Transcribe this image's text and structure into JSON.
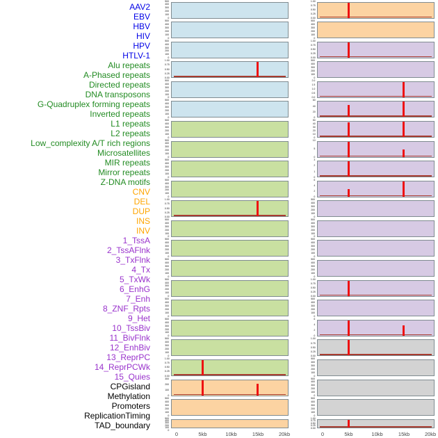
{
  "colors": {
    "label_groups": {
      "virus": "#0000e6",
      "repeat": "#228b22",
      "sv": "#ffa500",
      "chromatin": "#9932cc",
      "other": "#000000"
    },
    "panel_fills": {
      "virus": "#cde4ee",
      "repeat": "#c9e0a1",
      "sv": "#fcd3a2",
      "chromatin": "#d7cae4",
      "other": "#d3d3d3"
    },
    "spike": "#ee1111",
    "baseline": "#a83c30",
    "panel_border": "#7f8b90",
    "axis_text": "#464646"
  },
  "chart_data": {
    "type": "bar",
    "layout": "small-multiples",
    "columns": 2,
    "rows_per_column": 22,
    "x_axis": {
      "tick_labels": [
        "0",
        "5kb",
        "10kb",
        "15kb",
        "20kb"
      ],
      "range_kb": [
        0,
        20
      ]
    },
    "ytick_presets": {
      "count": [
        "500",
        "400",
        "300",
        "200",
        "100",
        "0"
      ],
      "norm": [
        "1.00",
        "0.75",
        "0.50",
        "0.25",
        "0.00"
      ]
    },
    "tracks": [
      {
        "label": "AAV2",
        "group": "virus",
        "yticks": "count",
        "ymax": 500,
        "spikes": [],
        "baseline": false
      },
      {
        "label": "EBV",
        "group": "virus",
        "yticks": "count",
        "ymax": 500,
        "spikes": [],
        "baseline": false
      },
      {
        "label": "HBV",
        "group": "virus",
        "yticks": "count",
        "ymax": 500,
        "spikes": [],
        "baseline": false
      },
      {
        "label": "HIV",
        "group": "virus",
        "yticks": "norm",
        "ymax": 1,
        "spikes": [
          {
            "kb": 15,
            "value": 1.0
          }
        ],
        "baseline": true
      },
      {
        "label": "HPV",
        "group": "virus",
        "yticks": "count",
        "ymax": 500,
        "spikes": [],
        "baseline": false
      },
      {
        "label": "HTLV-1",
        "group": "virus",
        "yticks": "count",
        "ymax": 500,
        "spikes": [],
        "baseline": false
      },
      {
        "label": "Alu repeats",
        "group": "repeat",
        "yticks": "count",
        "ymax": 500,
        "spikes": [],
        "baseline": false
      },
      {
        "label": "A-Phased repeats",
        "group": "repeat",
        "yticks": "count",
        "ymax": 500,
        "spikes": [],
        "baseline": false
      },
      {
        "label": "Directed repeats",
        "group": "repeat",
        "yticks": "count",
        "ymax": 500,
        "spikes": [],
        "baseline": false
      },
      {
        "label": "DNA transposons",
        "group": "repeat",
        "yticks": "count",
        "ymax": 500,
        "spikes": [],
        "baseline": false
      },
      {
        "label": "G-Quadruplex forming repeats",
        "group": "repeat",
        "yticks": "norm",
        "ymax": 1,
        "spikes": [
          {
            "kb": 15,
            "value": 1.0
          }
        ],
        "baseline": true
      },
      {
        "label": "Inverted repeats",
        "group": "repeat",
        "yticks": "count",
        "ymax": 500,
        "spikes": [],
        "baseline": false
      },
      {
        "label": "L1 repeats",
        "group": "repeat",
        "yticks": "count",
        "ymax": 500,
        "spikes": [],
        "baseline": false
      },
      {
        "label": "L2 repeats",
        "group": "repeat",
        "yticks": "count",
        "ymax": 500,
        "spikes": [],
        "baseline": false
      },
      {
        "label": "Low_complexity A/T rich regions",
        "group": "repeat",
        "yticks": "count",
        "ymax": 500,
        "spikes": [],
        "baseline": false
      },
      {
        "label": "Microsatellites",
        "group": "repeat",
        "yticks": "count",
        "ymax": 500,
        "spikes": [],
        "baseline": false
      },
      {
        "label": "MIR repeats",
        "group": "repeat",
        "yticks": "count",
        "ymax": 500,
        "spikes": [],
        "baseline": false
      },
      {
        "label": "Mirror repeats",
        "group": "repeat",
        "yticks": "count",
        "ymax": 500,
        "spikes": [],
        "baseline": false
      },
      {
        "label": "Z-DNA motifs",
        "group": "repeat",
        "yticks": "norm",
        "ymax": 1,
        "spikes": [
          {
            "kb": 5,
            "value": 1.0
          }
        ],
        "baseline": true
      },
      {
        "label": "CNV",
        "group": "sv",
        "yticks": [
          "300",
          "200",
          "100",
          "0"
        ],
        "ymax": 300,
        "spikes": [
          {
            "kb": 5,
            "value": 300
          },
          {
            "kb": 15,
            "value": 230
          }
        ],
        "baseline": true
      },
      {
        "label": "DEL",
        "group": "sv",
        "yticks": "count",
        "ymax": 500,
        "spikes": [],
        "baseline": false
      },
      {
        "label": "DUP",
        "group": "sv",
        "yticks": "count",
        "ymax": 500,
        "spikes": [],
        "baseline": false
      },
      {
        "label": "INS",
        "group": "sv",
        "yticks": "norm",
        "ymax": 1,
        "spikes": [
          {
            "kb": 5,
            "value": 1.0
          }
        ],
        "baseline": true
      },
      {
        "label": "INV",
        "group": "sv",
        "yticks": "count",
        "ymax": 500,
        "spikes": [],
        "baseline": false
      },
      {
        "label": "1_TssA",
        "group": "chromatin",
        "yticks": "norm",
        "ymax": 1,
        "spikes": [
          {
            "kb": 5,
            "value": 1.0
          }
        ],
        "baseline": true
      },
      {
        "label": "2_TssAFlnk",
        "group": "chromatin",
        "yticks": "count",
        "ymax": 500,
        "spikes": [],
        "baseline": false
      },
      {
        "label": "3_TxFlnk",
        "group": "chromatin",
        "yticks": [
          "2.0",
          "1.5",
          "1.0",
          "0.5",
          "0.0"
        ],
        "ymax": 2,
        "spikes": [
          {
            "kb": 15,
            "value": 2.0
          }
        ],
        "baseline": true
      },
      {
        "label": "4_Tx",
        "group": "chromatin",
        "yticks": [
          "60",
          "40",
          "20",
          "0"
        ],
        "ymax": 60,
        "spikes": [
          {
            "kb": 5,
            "value": 48
          },
          {
            "kb": 15,
            "value": 60
          }
        ],
        "baseline": true
      },
      {
        "label": "5_TxWk",
        "group": "chromatin",
        "yticks": [
          "50",
          "40",
          "30",
          "20",
          "10",
          "0"
        ],
        "ymax": 50,
        "spikes": [
          {
            "kb": 5,
            "value": 47
          },
          {
            "kb": 15,
            "value": 50
          }
        ],
        "baseline": true
      },
      {
        "label": "6_EnhG",
        "group": "chromatin",
        "yticks": [
          "10",
          "5",
          "0"
        ],
        "ymax": 10,
        "spikes": [
          {
            "kb": 5,
            "value": 10
          },
          {
            "kb": 15,
            "value": 5
          }
        ],
        "baseline": true
      },
      {
        "label": "7_Enh",
        "group": "chromatin",
        "yticks": [
          "3",
          "2",
          "1",
          "0"
        ],
        "ymax": 3,
        "spikes": [
          {
            "kb": 5,
            "value": 3
          }
        ],
        "baseline": true
      },
      {
        "label": "8_ZNF_Rpts",
        "group": "chromatin",
        "yticks": [
          "6",
          "4",
          "2",
          "0"
        ],
        "ymax": 6,
        "spikes": [
          {
            "kb": 5,
            "value": 3
          },
          {
            "kb": 15,
            "value": 6
          }
        ],
        "baseline": true
      },
      {
        "label": "9_Het",
        "group": "chromatin",
        "yticks": "count",
        "ymax": 500,
        "spikes": [],
        "baseline": false
      },
      {
        "label": "10_TssBiv",
        "group": "chromatin",
        "yticks": "count",
        "ymax": 500,
        "spikes": [],
        "baseline": false
      },
      {
        "label": "11_BivFlnk",
        "group": "chromatin",
        "yticks": "count",
        "ymax": 500,
        "spikes": [],
        "baseline": false
      },
      {
        "label": "12_EnhBiv",
        "group": "chromatin",
        "yticks": "count",
        "ymax": 500,
        "spikes": [],
        "baseline": false
      },
      {
        "label": "13_ReprPC",
        "group": "chromatin",
        "yticks": "norm",
        "ymax": 1,
        "spikes": [
          {
            "kb": 5,
            "value": 1.0
          }
        ],
        "baseline": true
      },
      {
        "label": "14_ReprPCWk",
        "group": "chromatin",
        "yticks": "count",
        "ymax": 500,
        "spikes": [],
        "baseline": false
      },
      {
        "label": "15_Quies",
        "group": "chromatin",
        "yticks": [
          "6",
          "4",
          "2",
          "0"
        ],
        "ymax": 6,
        "spikes": [
          {
            "kb": 5,
            "value": 6
          },
          {
            "kb": 15,
            "value": 4
          }
        ],
        "baseline": true
      },
      {
        "label": "CPGisland",
        "group": "other",
        "yticks": "norm",
        "ymax": 1,
        "spikes": [
          {
            "kb": 5,
            "value": 1.0
          }
        ],
        "baseline": true
      },
      {
        "label": "Methylation",
        "group": "other",
        "yticks": "count",
        "ymax": 500,
        "spikes": [],
        "baseline": false
      },
      {
        "label": "Promoters",
        "group": "other",
        "yticks": "count",
        "ymax": 500,
        "spikes": [],
        "baseline": false
      },
      {
        "label": "ReplicationTiming",
        "group": "other",
        "yticks": "count",
        "ymax": 500,
        "spikes": [],
        "baseline": false
      },
      {
        "label": "TAD_boundary",
        "group": "other",
        "yticks": "norm",
        "ymax": 1,
        "spikes": [
          {
            "kb": 5,
            "value": 1.0
          }
        ],
        "baseline": true
      }
    ]
  }
}
